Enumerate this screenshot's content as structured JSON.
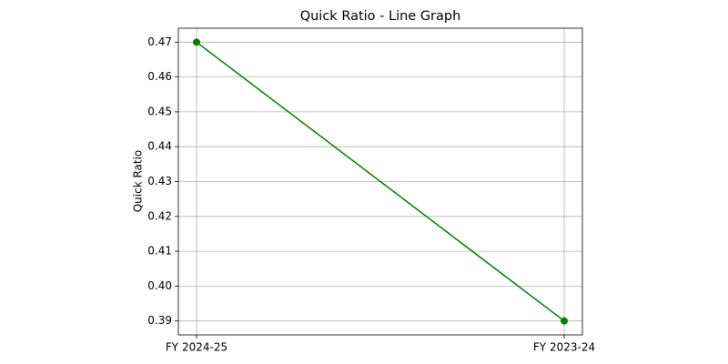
{
  "chart_data": {
    "type": "line",
    "title": "Quick Ratio - Line Graph",
    "y_label": "Quick Ratio",
    "categories": [
      "FY 2024-25",
      "FY 2023-24"
    ],
    "series": [
      {
        "name": "Quick Ratio",
        "color": "#008000",
        "values": [
          0.47,
          0.39
        ]
      }
    ],
    "ylim": [
      0.386,
      0.474
    ],
    "yticks": [
      0.39,
      {
        "value": 0.4,
        "label": "0.40"
      },
      0.41,
      0.42,
      0.43,
      0.44,
      0.45,
      0.46,
      0.47
    ],
    "grid": true,
    "marker": "circle",
    "legend": false
  }
}
